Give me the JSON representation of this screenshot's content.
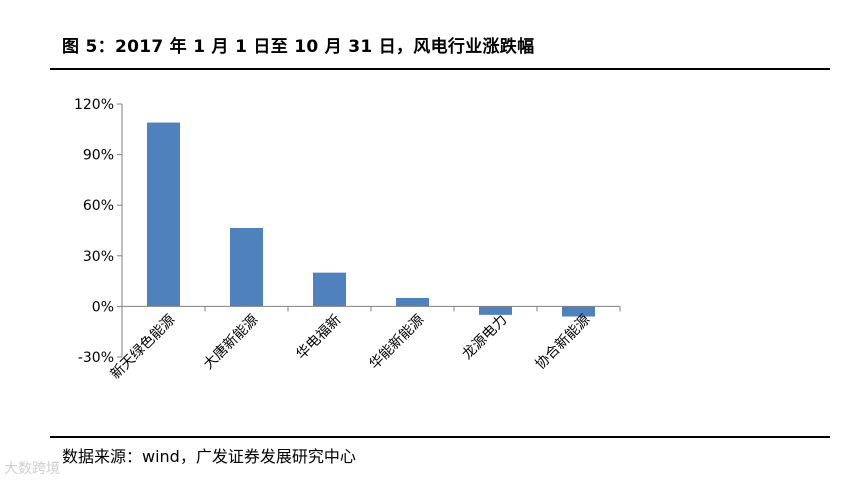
{
  "figure": {
    "title": "图 5：2017 年 1 月 1 日至 10 月 31 日，风电行业涨跌幅",
    "source": "数据来源：wind，广发证券发展研究中心",
    "watermark": "大数跨境"
  },
  "chart_data": {
    "type": "bar",
    "categories": [
      "新天绿色能源",
      "大唐新能源",
      "华电福新",
      "华能新能源",
      "龙源电力",
      "协合新能源"
    ],
    "values": [
      109,
      46.5,
      20,
      5,
      -5,
      -6
    ],
    "unit": "%",
    "ylim": [
      -30,
      120
    ],
    "yticks": [
      -30,
      0,
      30,
      60,
      90,
      120
    ],
    "ytick_labels": [
      "-30%",
      "0%",
      "30%",
      "60%",
      "90%",
      "120%"
    ],
    "bar_color": "#4f81bd",
    "grid": false,
    "legend": "none",
    "xlabel": "",
    "ylabel": ""
  }
}
